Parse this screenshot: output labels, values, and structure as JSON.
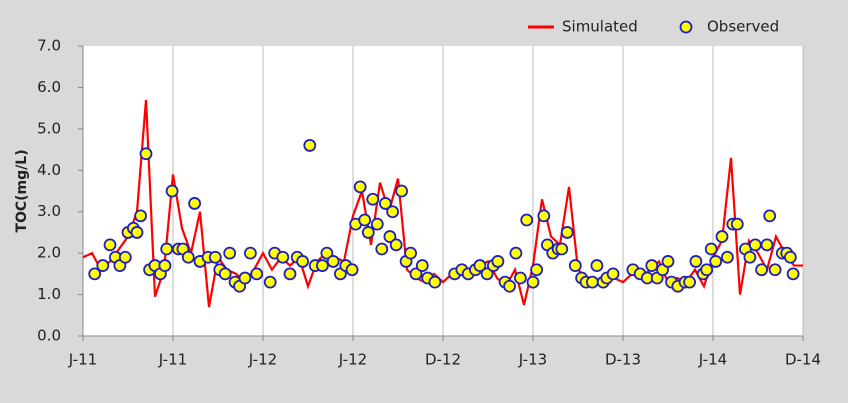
{
  "chart_data": {
    "type": "line",
    "y_label": "TOC(mg/L)",
    "xlim": [
      0,
      8
    ],
    "xticks": [
      {
        "value": 0,
        "label": "J-11"
      },
      {
        "value": 1,
        "label": "J-11"
      },
      {
        "value": 2,
        "label": "J-12"
      },
      {
        "value": 3,
        "label": "J-12"
      },
      {
        "value": 4,
        "label": "D-12"
      },
      {
        "value": 5,
        "label": "J-13"
      },
      {
        "value": 6,
        "label": "D-13"
      },
      {
        "value": 7,
        "label": "J-14"
      },
      {
        "value": 8,
        "label": "D-14"
      }
    ],
    "ylim": [
      0,
      7
    ],
    "yticks": [
      {
        "value": 0,
        "label": "0.0"
      },
      {
        "value": 1,
        "label": "1.0"
      },
      {
        "value": 2,
        "label": "2.0"
      },
      {
        "value": 3,
        "label": "3.0"
      },
      {
        "value": 4,
        "label": "4.0"
      },
      {
        "value": 5,
        "label": "5.0"
      },
      {
        "value": 6,
        "label": "6.0"
      },
      {
        "value": 7,
        "label": "7.0"
      }
    ],
    "grid": "x",
    "legend": "top-right",
    "series": [
      {
        "name": "Simulated",
        "type": "line",
        "color": "#ff0000",
        "x": [
          0,
          0.1,
          0.2,
          0.3,
          0.4,
          0.5,
          0.6,
          0.7,
          0.8,
          0.9,
          1,
          1.1,
          1.2,
          1.3,
          1.4,
          1.5,
          1.6,
          1.7,
          1.8,
          1.9,
          2,
          2.1,
          2.2,
          2.3,
          2.4,
          2.5,
          2.6,
          2.7,
          2.8,
          2.9,
          3,
          3.1,
          3.2,
          3.3,
          3.4,
          3.5,
          3.6,
          3.7,
          3.8,
          3.9,
          4,
          4.1,
          4.2,
          4.3,
          4.4,
          4.5,
          4.6,
          4.7,
          4.8,
          4.9,
          5,
          5.1,
          5.2,
          5.3,
          5.4,
          5.5,
          5.6,
          5.7,
          5.8,
          5.9,
          6,
          6.1,
          6.2,
          6.3,
          6.4,
          6.5,
          6.6,
          6.7,
          6.8,
          6.9,
          7,
          7.1,
          7.2,
          7.3,
          7.4,
          7.5,
          7.6,
          7.7,
          7.8,
          7.9,
          8
        ],
        "values": [
          1.9,
          2.0,
          1.6,
          1.8,
          2.1,
          2.4,
          3.0,
          5.7,
          0.95,
          1.6,
          3.9,
          2.6,
          2.0,
          3.0,
          0.7,
          1.9,
          1.6,
          1.5,
          1.3,
          1.6,
          2.0,
          1.6,
          1.9,
          1.7,
          1.9,
          1.2,
          1.8,
          2.0,
          1.9,
          1.8,
          2.9,
          3.5,
          2.2,
          3.7,
          3.0,
          3.8,
          1.6,
          1.4,
          1.3,
          1.5,
          1.3,
          1.5,
          1.6,
          1.5,
          1.7,
          1.8,
          1.4,
          1.2,
          1.6,
          0.75,
          1.7,
          3.3,
          2.4,
          2.2,
          3.6,
          1.6,
          1.4,
          1.3,
          1.5,
          1.4,
          1.3,
          1.5,
          1.4,
          1.6,
          1.8,
          1.3,
          1.4,
          1.3,
          1.6,
          1.2,
          1.9,
          2.3,
          4.3,
          1.0,
          2.3,
          2.0,
          1.6,
          2.4,
          2.0,
          1.7,
          1.7
        ]
      },
      {
        "name": "Observed",
        "type": "scatter",
        "color": "#ffff00",
        "edge_color": "#1f1fbf",
        "x": [
          0.13,
          0.22,
          0.3,
          0.36,
          0.41,
          0.47,
          0.5,
          0.56,
          0.6,
          0.64,
          0.7,
          0.74,
          0.8,
          0.86,
          0.91,
          0.93,
          0.99,
          1.06,
          1.11,
          1.17,
          1.24,
          1.3,
          1.39,
          1.47,
          1.52,
          1.58,
          1.63,
          1.69,
          1.74,
          1.8,
          1.86,
          1.93,
          2.08,
          2.13,
          2.22,
          2.3,
          2.38,
          2.44,
          2.52,
          2.58,
          2.66,
          2.71,
          2.78,
          2.86,
          2.92,
          2.99,
          3.03,
          3.08,
          3.13,
          3.17,
          3.22,
          3.27,
          3.32,
          3.36,
          3.41,
          3.44,
          3.48,
          3.54,
          3.59,
          3.64,
          3.7,
          3.77,
          3.83,
          3.91,
          4.13,
          4.21,
          4.28,
          4.36,
          4.41,
          4.49,
          4.56,
          4.61,
          4.69,
          4.74,
          4.81,
          4.86,
          4.93,
          5.0,
          5.04,
          5.12,
          5.16,
          5.22,
          5.28,
          5.32,
          5.38,
          5.47,
          5.54,
          5.59,
          5.66,
          5.71,
          5.78,
          5.82,
          5.89,
          6.11,
          6.19,
          6.27,
          6.32,
          6.38,
          6.44,
          6.5,
          6.54,
          6.61,
          6.69,
          6.74,
          6.81,
          6.89,
          6.93,
          6.98,
          7.03,
          7.1,
          7.16,
          7.22,
          7.27,
          7.36,
          7.41,
          7.47,
          7.54,
          7.6,
          7.63,
          7.69,
          7.77,
          7.82,
          7.86,
          7.89
        ],
        "values": [
          1.5,
          1.7,
          2.2,
          1.9,
          1.7,
          1.9,
          2.5,
          2.6,
          2.5,
          2.9,
          4.4,
          1.6,
          1.7,
          1.5,
          1.7,
          2.1,
          3.5,
          2.1,
          2.1,
          1.9,
          3.2,
          1.8,
          1.9,
          1.9,
          1.6,
          1.5,
          2.0,
          1.3,
          1.2,
          1.4,
          2.0,
          1.5,
          1.3,
          2.0,
          1.9,
          1.5,
          1.9,
          1.8,
          4.6,
          1.7,
          1.7,
          2.0,
          1.8,
          1.5,
          1.7,
          1.6,
          2.7,
          3.6,
          2.8,
          2.5,
          3.3,
          2.7,
          2.1,
          3.2,
          2.4,
          3.0,
          2.2,
          3.5,
          1.8,
          2.0,
          1.5,
          1.7,
          1.4,
          1.3,
          1.5,
          1.6,
          1.5,
          1.6,
          1.7,
          1.5,
          1.7,
          1.8,
          1.3,
          1.2,
          2.0,
          1.4,
          2.8,
          1.3,
          1.6,
          2.9,
          2.2,
          2.0,
          2.1,
          2.1,
          2.5,
          1.7,
          1.4,
          1.3,
          1.3,
          1.7,
          1.3,
          1.4,
          1.5,
          1.6,
          1.5,
          1.4,
          1.7,
          1.4,
          1.6,
          1.8,
          1.3,
          1.2,
          1.3,
          1.3,
          1.8,
          1.5,
          1.6,
          2.1,
          1.8,
          2.4,
          1.9,
          2.7,
          2.7,
          2.1,
          1.9,
          2.2,
          1.6,
          2.2,
          2.9,
          1.6,
          2.0,
          2.0,
          1.9,
          1.5
        ]
      }
    ]
  }
}
